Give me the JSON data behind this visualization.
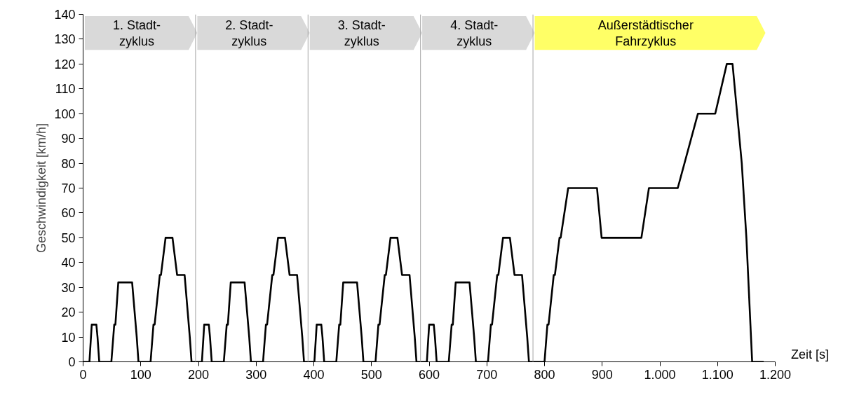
{
  "chart_data": {
    "type": "line",
    "xlabel": "Zeit [s]",
    "ylabel": "Geschwindigkeit [km/h]",
    "x": [
      0,
      11,
      15,
      23,
      25,
      28,
      49,
      54,
      56,
      61,
      85,
      93,
      96,
      117,
      122,
      124,
      133,
      135,
      143,
      155,
      163,
      176,
      185,
      188,
      195,
      206,
      210,
      218,
      220,
      223,
      244,
      249,
      251,
      256,
      280,
      288,
      291,
      312,
      317,
      319,
      328,
      330,
      338,
      350,
      358,
      371,
      380,
      383,
      390,
      401,
      405,
      413,
      415,
      418,
      439,
      444,
      446,
      451,
      475,
      483,
      486,
      507,
      512,
      514,
      523,
      525,
      533,
      545,
      553,
      566,
      575,
      578,
      585,
      596,
      600,
      608,
      610,
      613,
      634,
      639,
      641,
      646,
      670,
      678,
      681,
      702,
      707,
      709,
      718,
      720,
      728,
      740,
      748,
      761,
      770,
      773,
      780,
      800,
      805,
      807,
      816,
      818,
      826,
      828,
      841,
      891,
      899,
      968,
      981,
      1031,
      1066,
      1096,
      1116,
      1126,
      1142,
      1150,
      1160,
      1180
    ],
    "series": [
      {
        "color": "#000000",
        "values": [
          0,
          0,
          15,
          15,
          10,
          0,
          0,
          15,
          15,
          32,
          32,
          10,
          0,
          0,
          15,
          15,
          35,
          35,
          50,
          50,
          35,
          35,
          10,
          0,
          0,
          0,
          15,
          15,
          10,
          0,
          0,
          15,
          15,
          32,
          32,
          10,
          0,
          0,
          15,
          15,
          35,
          35,
          50,
          50,
          35,
          35,
          10,
          0,
          0,
          0,
          15,
          15,
          10,
          0,
          0,
          15,
          15,
          32,
          32,
          10,
          0,
          0,
          15,
          15,
          35,
          35,
          50,
          50,
          35,
          35,
          10,
          0,
          0,
          0,
          15,
          15,
          10,
          0,
          0,
          15,
          15,
          32,
          32,
          10,
          0,
          0,
          15,
          15,
          35,
          35,
          50,
          50,
          35,
          35,
          10,
          0,
          0,
          0,
          15,
          15,
          35,
          35,
          50,
          50,
          70,
          70,
          50,
          50,
          70,
          70,
          100,
          100,
          120,
          120,
          80,
          50,
          0,
          0
        ]
      }
    ],
    "xlim": [
      0,
      1200
    ],
    "ylim": [
      0,
      140
    ],
    "xticks": [
      0,
      100,
      200,
      300,
      400,
      500,
      600,
      700,
      800,
      900,
      {
        "value": 1000,
        "label": "1.000"
      },
      {
        "value": 1100,
        "label": "1.100"
      },
      {
        "value": 1200,
        "label": "1.200"
      }
    ],
    "yticks": [
      0,
      10,
      20,
      30,
      40,
      50,
      60,
      70,
      80,
      90,
      100,
      110,
      120,
      130,
      140
    ],
    "grid": false,
    "marker": "none",
    "line_style": "solid",
    "ref_lines": [
      {
        "axis": "x",
        "value": 195,
        "color": "#a6a6a6"
      },
      {
        "axis": "x",
        "value": 390,
        "color": "#a6a6a6"
      },
      {
        "axis": "x",
        "value": 585,
        "color": "#a6a6a6"
      },
      {
        "axis": "x",
        "value": 780,
        "color": "#a6a6a6"
      }
    ],
    "bands": [
      {
        "axis": "x",
        "from": 0,
        "to": 195,
        "label": "1. Stadt-\nzyklus",
        "color": "#d9d9d9"
      },
      {
        "axis": "x",
        "from": 195,
        "to": 390,
        "label": "2. Stadt-\nzyklus",
        "color": "#d9d9d9"
      },
      {
        "axis": "x",
        "from": 390,
        "to": 585,
        "label": "3. Stadt-\nzyklus",
        "color": "#d9d9d9"
      },
      {
        "axis": "x",
        "from": 585,
        "to": 780,
        "label": "4. Stadt-\nzyklus",
        "color": "#d9d9d9"
      },
      {
        "axis": "x",
        "from": 780,
        "to": 1180,
        "label": "Außerstädtischer\nFahrzyklus",
        "color": "#ffff66"
      }
    ]
  }
}
